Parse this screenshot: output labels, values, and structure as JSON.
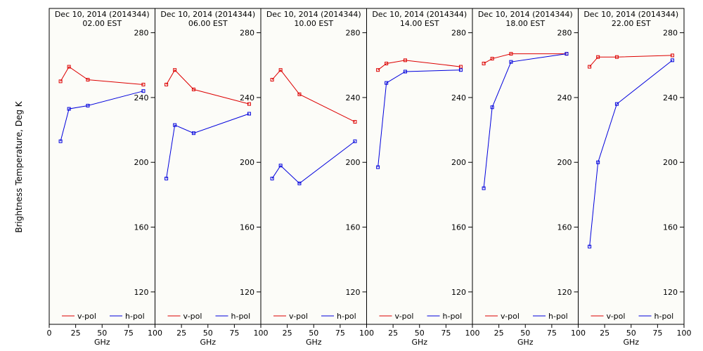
{
  "ylabel": "Brightness Temperature, Deg K",
  "xlabel": "GHz",
  "colors": {
    "v": "#dd0000",
    "h": "#0000dd",
    "panel_bg": "#fcfcf8"
  },
  "chart_data": {
    "type": "line",
    "ylim": [
      100,
      295
    ],
    "yticks": [
      120,
      160,
      200,
      240,
      280
    ],
    "xlim": [
      0,
      100
    ],
    "xticks": [
      0,
      25,
      50,
      75,
      100
    ],
    "first_panel_xticks": [
      "0",
      "25",
      "50",
      "75",
      "100"
    ],
    "other_panel_xticks": [
      "",
      "25",
      "50",
      "75",
      "100"
    ],
    "panels": [
      {
        "title1": "Dec 10, 2014 (2014344)",
        "title2": "02.00 EST",
        "series": [
          {
            "name": "v-pol",
            "x": [
              10.7,
              18.7,
              36.5,
              89
            ],
            "y": [
              250,
              259,
              251,
              248
            ]
          },
          {
            "name": "h-pol",
            "x": [
              10.7,
              18.7,
              36.5,
              89
            ],
            "y": [
              213,
              233,
              235,
              244
            ]
          }
        ]
      },
      {
        "title1": "Dec 10, 2014 (2014344)",
        "title2": "06.00 EST",
        "series": [
          {
            "name": "v-pol",
            "x": [
              10.7,
              18.7,
              36.5,
              89
            ],
            "y": [
              248,
              257,
              245,
              236
            ]
          },
          {
            "name": "h-pol",
            "x": [
              10.7,
              18.7,
              36.5,
              89
            ],
            "y": [
              190,
              223,
              218,
              230
            ]
          }
        ]
      },
      {
        "title1": "Dec 10, 2014 (2014344)",
        "title2": "10.00 EST",
        "series": [
          {
            "name": "v-pol",
            "x": [
              10.7,
              18.7,
              36.5,
              89
            ],
            "y": [
              251,
              257,
              242,
              225
            ]
          },
          {
            "name": "h-pol",
            "x": [
              10.7,
              18.7,
              36.5,
              89
            ],
            "y": [
              190,
              198,
              187,
              213
            ]
          }
        ]
      },
      {
        "title1": "Dec 10, 2014 (2014344)",
        "title2": "14.00 EST",
        "series": [
          {
            "name": "v-pol",
            "x": [
              10.7,
              18.7,
              36.5,
              89
            ],
            "y": [
              257,
              261,
              263,
              259
            ]
          },
          {
            "name": "h-pol",
            "x": [
              10.7,
              18.7,
              36.5,
              89
            ],
            "y": [
              197,
              249,
              256,
              257
            ]
          }
        ]
      },
      {
        "title1": "Dec 10, 2014 (2014344)",
        "title2": "18.00 EST",
        "series": [
          {
            "name": "v-pol",
            "x": [
              10.7,
              18.7,
              36.5,
              89
            ],
            "y": [
              261,
              264,
              267,
              267
            ]
          },
          {
            "name": "h-pol",
            "x": [
              10.7,
              18.7,
              36.5,
              89
            ],
            "y": [
              184,
              234,
              262,
              267
            ]
          }
        ]
      },
      {
        "title1": "Dec 10, 2014 (2014344)",
        "title2": "22.00 EST",
        "series": [
          {
            "name": "v-pol",
            "x": [
              10.7,
              18.7,
              36.5,
              89
            ],
            "y": [
              259,
              265,
              265,
              266
            ]
          },
          {
            "name": "h-pol",
            "x": [
              10.7,
              18.7,
              36.5,
              89
            ],
            "y": [
              148,
              200,
              236,
              263
            ]
          }
        ]
      }
    ]
  }
}
